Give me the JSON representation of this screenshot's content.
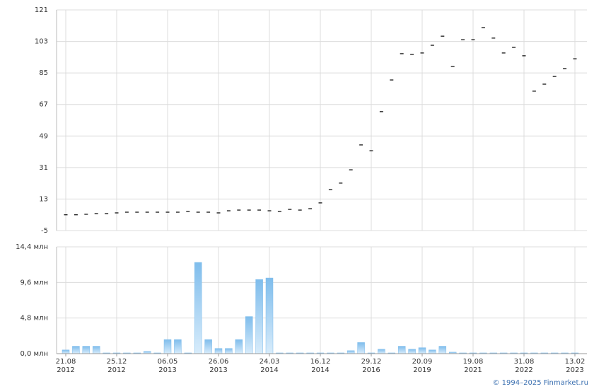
{
  "chart_data": [
    {
      "type": "dash",
      "color": "#000000",
      "values": [
        4,
        4,
        4.3,
        4.7,
        4.7,
        5.1,
        5.5,
        5.5,
        5.5,
        5.5,
        5.5,
        5.5,
        5.9,
        5.5,
        5.5,
        5.1,
        6.3,
        6.7,
        6.7,
        6.7,
        6.3,
        5.9,
        7.1,
        6.7,
        7.5,
        10.8,
        18.4,
        22.1,
        29.7,
        43.9,
        40.6,
        62.9,
        81,
        96,
        95.6,
        96.4,
        100.8,
        106,
        88.7,
        104,
        104,
        110.9,
        104.9,
        96.4,
        99.6,
        94.8,
        74.6,
        78.6,
        83,
        87.5,
        93.1
      ],
      "ylim": [
        -5,
        121
      ],
      "yticks": [
        -5,
        13,
        31,
        49,
        67,
        85,
        103,
        121
      ],
      "grid": true
    },
    {
      "type": "bar",
      "color": "#7fbdec",
      "categories": [
        "21.08\n2012",
        null,
        null,
        null,
        null,
        "25.12\n2012",
        null,
        null,
        null,
        null,
        "06.05\n2013",
        null,
        null,
        null,
        null,
        "26.06\n2013",
        null,
        null,
        null,
        null,
        "24.03\n2014",
        null,
        null,
        null,
        null,
        "16.12\n2014",
        null,
        null,
        null,
        null,
        "29.12\n2016",
        null,
        null,
        null,
        null,
        "20.09\n2019",
        null,
        null,
        null,
        null,
        "19.08\n2021",
        null,
        null,
        null,
        null,
        "31.08\n2022",
        null,
        null,
        null,
        null,
        "13.02\n2023"
      ],
      "values": [
        0.5,
        1.0,
        1.0,
        1.0,
        0.1,
        0.1,
        0.1,
        0.1,
        0.3,
        0.1,
        1.9,
        1.9,
        0.1,
        12.3,
        1.9,
        0.7,
        0.7,
        1.9,
        5.0,
        10.0,
        10.2,
        0.1,
        0.1,
        0.1,
        0.1,
        0.1,
        0.1,
        0.1,
        0.4,
        1.5,
        0.1,
        0.6,
        0.1,
        1.0,
        0.6,
        0.8,
        0.5,
        1.0,
        0.2,
        0.1,
        0.1,
        0.1,
        0.1,
        0.1,
        0.1,
        0.1,
        0.1,
        0.1,
        0.1,
        0.1,
        0.1
      ],
      "ylim": [
        0,
        14.4
      ],
      "yticks": [
        {
          "value": 0,
          "label": "0,0 млн"
        },
        {
          "value": 4.8,
          "label": "4,8 млн"
        },
        {
          "value": 9.6,
          "label": "9,6 млн"
        },
        {
          "value": 14.4,
          "label": "14,4 млн"
        }
      ],
      "grid": true
    }
  ],
  "source": "© 1994–2025 Finmarket.ru"
}
